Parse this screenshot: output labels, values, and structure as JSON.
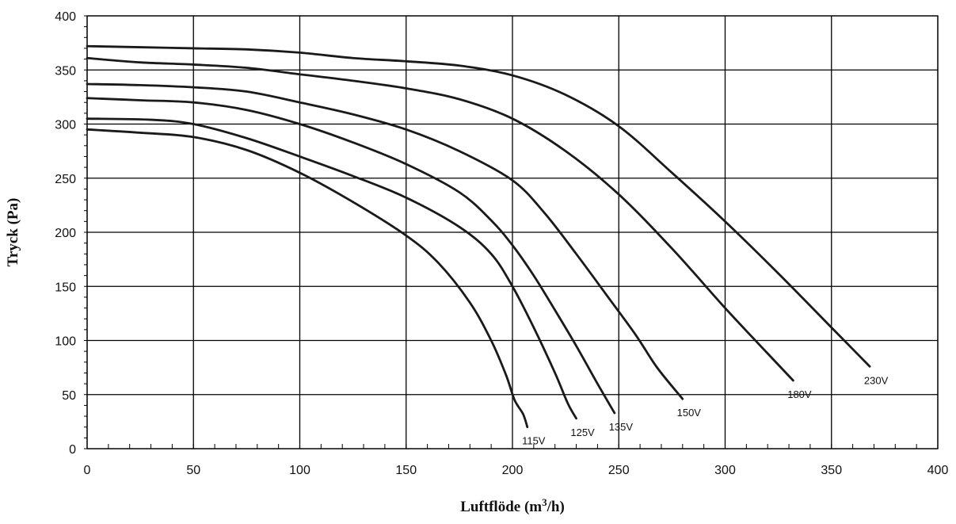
{
  "chart_data": {
    "type": "line",
    "xlabel": "Luftflöde (m",
    "xlabel_sup": "3",
    "xlabel_tail": "/h)",
    "ylabel": "Tryck (Pa)",
    "xlim": [
      0,
      400
    ],
    "ylim": [
      0,
      400
    ],
    "x_ticks": [
      0,
      50,
      100,
      150,
      200,
      250,
      300,
      350,
      400
    ],
    "y_ticks": [
      0,
      50,
      100,
      150,
      200,
      250,
      300,
      350,
      400
    ],
    "grid": true,
    "series": [
      {
        "name": "115V",
        "points": [
          [
            0,
            295
          ],
          [
            25,
            292
          ],
          [
            50,
            288
          ],
          [
            75,
            276
          ],
          [
            100,
            255
          ],
          [
            125,
            228
          ],
          [
            150,
            197
          ],
          [
            165,
            172
          ],
          [
            180,
            135
          ],
          [
            190,
            100
          ],
          [
            197,
            68
          ],
          [
            201,
            45
          ],
          [
            205,
            32
          ],
          [
            207,
            20
          ]
        ]
      },
      {
        "name": "125V",
        "points": [
          [
            0,
            305
          ],
          [
            30,
            304
          ],
          [
            50,
            300
          ],
          [
            75,
            287
          ],
          [
            100,
            270
          ],
          [
            125,
            252
          ],
          [
            150,
            232
          ],
          [
            175,
            205
          ],
          [
            190,
            180
          ],
          [
            200,
            150
          ],
          [
            210,
            112
          ],
          [
            220,
            70
          ],
          [
            226,
            42
          ],
          [
            230,
            28
          ]
        ]
      },
      {
        "name": "135V",
        "points": [
          [
            0,
            324
          ],
          [
            25,
            322
          ],
          [
            50,
            320
          ],
          [
            75,
            313
          ],
          [
            100,
            300
          ],
          [
            125,
            283
          ],
          [
            150,
            263
          ],
          [
            175,
            237
          ],
          [
            190,
            211
          ],
          [
            200,
            188
          ],
          [
            210,
            160
          ],
          [
            220,
            128
          ],
          [
            230,
            95
          ],
          [
            240,
            60
          ],
          [
            248,
            33
          ]
        ]
      },
      {
        "name": "150V",
        "points": [
          [
            0,
            337
          ],
          [
            25,
            336
          ],
          [
            50,
            334
          ],
          [
            75,
            330
          ],
          [
            100,
            320
          ],
          [
            125,
            309
          ],
          [
            150,
            295
          ],
          [
            175,
            275
          ],
          [
            200,
            248
          ],
          [
            215,
            218
          ],
          [
            230,
            180
          ],
          [
            245,
            140
          ],
          [
            258,
            105
          ],
          [
            268,
            75
          ],
          [
            280,
            46
          ]
        ]
      },
      {
        "name": "180V",
        "points": [
          [
            0,
            361
          ],
          [
            25,
            357
          ],
          [
            50,
            355
          ],
          [
            75,
            352
          ],
          [
            100,
            346
          ],
          [
            125,
            340
          ],
          [
            150,
            333
          ],
          [
            175,
            323
          ],
          [
            200,
            305
          ],
          [
            225,
            275
          ],
          [
            250,
            235
          ],
          [
            275,
            185
          ],
          [
            300,
            130
          ],
          [
            320,
            88
          ],
          [
            332,
            63
          ]
        ]
      },
      {
        "name": "230V",
        "points": [
          [
            0,
            372
          ],
          [
            25,
            371
          ],
          [
            50,
            370
          ],
          [
            75,
            369
          ],
          [
            100,
            366
          ],
          [
            125,
            361
          ],
          [
            150,
            358
          ],
          [
            175,
            354
          ],
          [
            200,
            345
          ],
          [
            225,
            327
          ],
          [
            250,
            298
          ],
          [
            275,
            255
          ],
          [
            300,
            210
          ],
          [
            325,
            162
          ],
          [
            350,
            112
          ],
          [
            360,
            92
          ],
          [
            368,
            76
          ]
        ]
      }
    ]
  }
}
